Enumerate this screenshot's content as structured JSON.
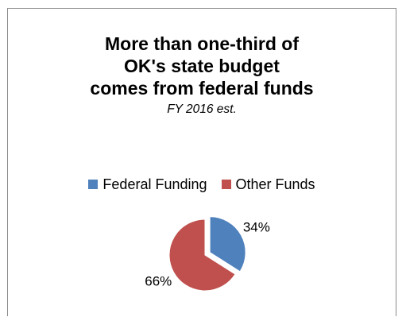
{
  "chart_data": {
    "type": "pie",
    "title_lines": [
      "More than one-third of",
      "OK's state budget",
      "comes from federal funds"
    ],
    "subtitle": "FY 2016 est.",
    "categories": [
      "Federal Funding",
      "Other Funds"
    ],
    "values": [
      34,
      66
    ],
    "data_labels": [
      "34%",
      "66%"
    ],
    "colors": [
      "#4f81bd",
      "#c0504d"
    ],
    "legend_position": "top",
    "exploded_slice": "Federal Funding"
  }
}
